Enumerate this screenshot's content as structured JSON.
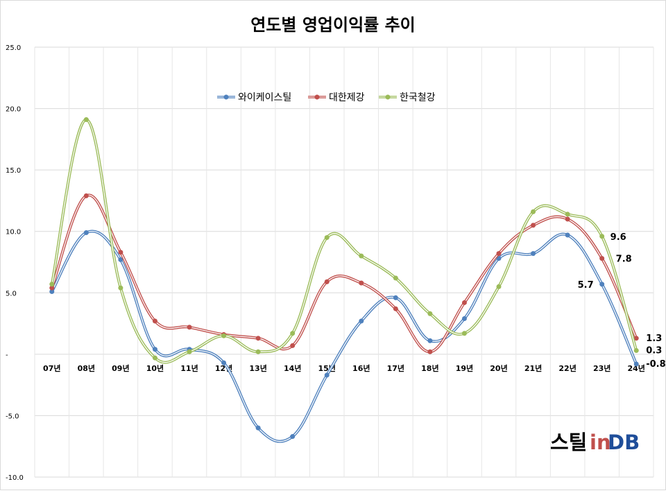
{
  "chart_data": {
    "type": "line",
    "title": "연도별 영업이익률 추이",
    "categories": [
      "07년",
      "08년",
      "09년",
      "10년",
      "11년",
      "12년",
      "13년",
      "14년",
      "15년",
      "16년",
      "17년",
      "18년",
      "19년",
      "20년",
      "21년",
      "22년",
      "23년",
      "24년"
    ],
    "ylim": [
      -10,
      25
    ],
    "yticks": [
      {
        "value": 25,
        "label": "25.0"
      },
      {
        "value": 20,
        "label": "20.0"
      },
      {
        "value": 15,
        "label": "15.0"
      },
      {
        "value": 10,
        "label": "10.0"
      },
      {
        "value": 5,
        "label": "5.0"
      },
      {
        "value": 0,
        "label": "-"
      },
      {
        "value": -5,
        "label": "-5.0"
      },
      {
        "value": -10,
        "label": "-10.0"
      }
    ],
    "grid": true,
    "legend_position": "top-center",
    "smooth": true,
    "series": [
      {
        "name": "와이케이스틸",
        "color": "#4f81bd",
        "values": [
          5.1,
          9.9,
          7.7,
          0.4,
          0.4,
          -0.7,
          -6.0,
          -6.7,
          -1.7,
          2.7,
          4.6,
          1.1,
          2.9,
          7.8,
          8.2,
          9.7,
          5.7,
          -0.8
        ]
      },
      {
        "name": "대한제강",
        "color": "#c0504d",
        "values": [
          5.4,
          12.9,
          8.3,
          2.7,
          2.2,
          1.6,
          1.3,
          0.7,
          5.9,
          5.8,
          3.7,
          0.2,
          4.2,
          8.2,
          10.5,
          11.0,
          7.8,
          1.3
        ]
      },
      {
        "name": "한국철강",
        "color": "#9bbb59",
        "values": [
          5.7,
          19.1,
          5.4,
          -0.3,
          0.2,
          1.5,
          0.2,
          1.7,
          9.5,
          8.0,
          6.2,
          3.3,
          1.7,
          5.5,
          11.6,
          11.4,
          9.6,
          0.3
        ]
      }
    ],
    "data_labels": [
      {
        "series": 2,
        "index": 16,
        "text": "9.6"
      },
      {
        "series": 1,
        "index": 16,
        "text": "7.8"
      },
      {
        "series": 0,
        "index": 16,
        "text": "5.7"
      },
      {
        "series": 1,
        "index": 17,
        "text": "1.3"
      },
      {
        "series": 2,
        "index": 17,
        "text": "0.3"
      },
      {
        "series": 0,
        "index": 17,
        "text": "-0.8"
      }
    ]
  },
  "brand": {
    "logo_text_1": "스틸",
    "logo_text_2": "in",
    "logo_text_3": "DB"
  }
}
